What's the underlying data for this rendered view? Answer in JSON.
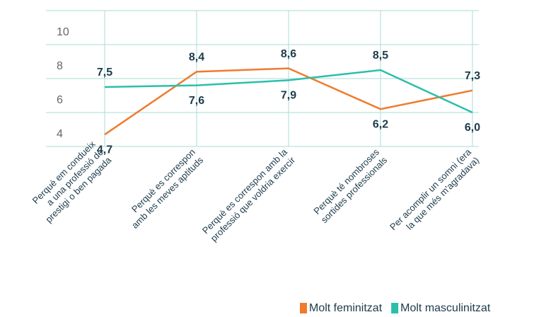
{
  "chart_data": {
    "type": "line",
    "categories": [
      "Perquè em condueix\na una professió de\nprestigi o ben pagada",
      "Perquè es correspon\namb les meves aptituds",
      "Perquè es correspon amb la\nprofessió que voldria exercir",
      "Perquè té nombroses\nsortides professionals",
      "Per acomplir un somni (era\nla que més m'agradava)"
    ],
    "series": [
      {
        "name": "Molt feminitzat",
        "color": "#f07b2e",
        "values": [
          4.7,
          8.4,
          8.6,
          6.2,
          7.3
        ],
        "value_labels": [
          "4,7",
          "8,4",
          "8,6",
          "6,2",
          "7,3"
        ]
      },
      {
        "name": "Molt masculinitzat",
        "color": "#2bbfaa",
        "values": [
          7.5,
          7.6,
          7.9,
          8.5,
          6.0
        ],
        "value_labels": [
          "7,5",
          "7,6",
          "7,9",
          "8,5",
          "6,0"
        ]
      }
    ],
    "ylim": [
      4,
      12
    ],
    "yticks": [
      4,
      6,
      8,
      10
    ],
    "grid": true
  }
}
